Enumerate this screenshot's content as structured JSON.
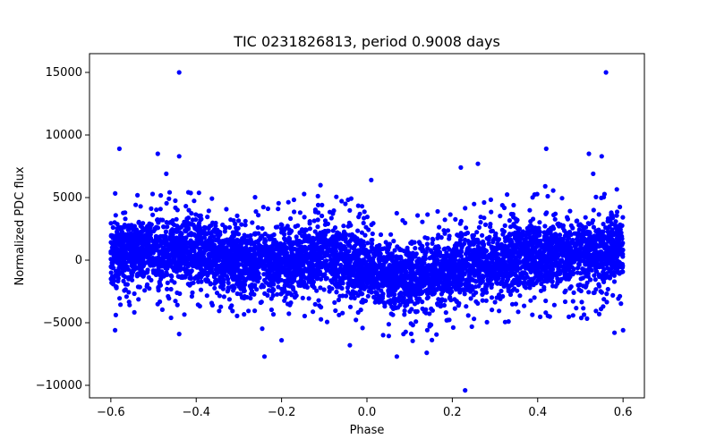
{
  "chart_data": {
    "type": "scatter",
    "title": "TIC 0231826813, period 0.9008 days",
    "xlabel": "Phase",
    "ylabel": "Normalized PDC flux",
    "xlim": [
      -0.65,
      0.65
    ],
    "ylim": [
      -11000,
      16500
    ],
    "xticks": [
      -0.6,
      -0.4,
      -0.2,
      0.0,
      0.2,
      0.4,
      0.6
    ],
    "xtick_labels": [
      "−0.6",
      "−0.4",
      "−0.2",
      "0.0",
      "0.2",
      "0.4",
      "0.6"
    ],
    "yticks": [
      -10000,
      -5000,
      0,
      5000,
      10000,
      15000
    ],
    "ytick_labels": [
      "−10000",
      "−5000",
      "0",
      "5000",
      "10000",
      "15000"
    ],
    "grid": false,
    "marker_color": "#0000ff",
    "series": [
      {
        "x_range": [
          -0.6,
          0.6
        ],
        "flux_envelope": [
          {
            "phase": -0.6,
            "low": -3000,
            "high": 4500
          },
          {
            "phase": -0.4,
            "low": -3200,
            "high": 4200
          },
          {
            "phase": -0.2,
            "low": -4200,
            "high": 3500
          },
          {
            "phase": -0.1,
            "low": -3500,
            "high": 4800
          },
          {
            "phase": 0.0,
            "low": -4200,
            "high": 2800
          },
          {
            "phase": 0.1,
            "low": -5500,
            "high": 2500
          },
          {
            "phase": 0.2,
            "low": -4500,
            "high": 3200
          },
          {
            "phase": 0.4,
            "low": -3500,
            "high": 4500
          },
          {
            "phase": 0.6,
            "low": -3000,
            "high": 4500
          }
        ],
        "outliers": [
          {
            "x": -0.44,
            "y": 15000
          },
          {
            "x": 0.56,
            "y": 15000
          },
          {
            "x": -0.58,
            "y": 8900
          },
          {
            "x": -0.49,
            "y": 8500
          },
          {
            "x": -0.44,
            "y": 8300
          },
          {
            "x": -0.47,
            "y": 6900
          },
          {
            "x": 0.42,
            "y": 8900
          },
          {
            "x": 0.52,
            "y": 8500
          },
          {
            "x": 0.55,
            "y": 8300
          },
          {
            "x": 0.53,
            "y": 6900
          },
          {
            "x": 0.01,
            "y": 6400
          },
          {
            "x": 0.26,
            "y": 7700
          },
          {
            "x": 0.22,
            "y": 7400
          },
          {
            "x": 0.23,
            "y": -10400
          },
          {
            "x": -0.24,
            "y": -7700
          },
          {
            "x": 0.07,
            "y": -7700
          },
          {
            "x": 0.14,
            "y": -7400
          },
          {
            "x": 0.58,
            "y": -5800
          },
          {
            "x": -0.44,
            "y": -5900
          },
          {
            "x": -0.59,
            "y": -5600
          },
          {
            "x": 0.6,
            "y": -5600
          },
          {
            "x": -0.04,
            "y": -6800
          },
          {
            "x": -0.2,
            "y": -6400
          }
        ]
      }
    ]
  }
}
